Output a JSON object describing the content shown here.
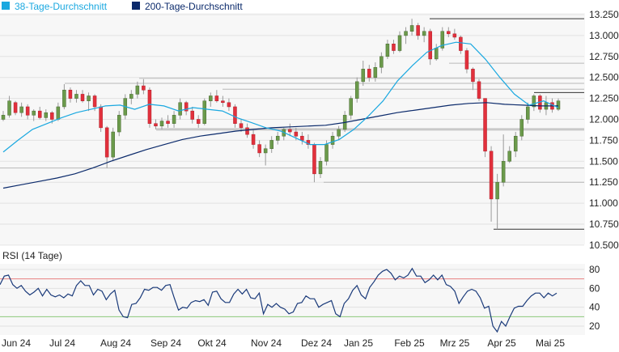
{
  "legend": [
    {
      "label": "38-Tage-Durchschnitt",
      "color": "#1aa8e0"
    },
    {
      "label": "200-Tage-Durchschnitt",
      "color": "#0b2a6b"
    }
  ],
  "chart_data": [
    {
      "type": "candlestick",
      "title": "",
      "yticks": [
        "13.250",
        "13.000",
        "12.750",
        "12.500",
        "12.250",
        "12.000",
        "11.750",
        "11.500",
        "11.250",
        "11.000",
        "10.750",
        "10.500"
      ],
      "ylim": [
        10.5,
        13.25
      ],
      "grid": true,
      "xticks": [
        "Jun 24",
        "Jul 24",
        "Aug 24",
        "Sep 24",
        "Okt 24",
        "Nov 24",
        "Dez 24",
        "Jan 25",
        "Feb 25",
        "Mrz 25",
        "Apr 25",
        "Mai 25"
      ],
      "colors": {
        "up": "#6b9a4b",
        "down": "#e2303c",
        "wick": "#9a9a9a"
      },
      "candles_ohlc": [
        [
          12.0,
          12.1,
          11.98,
          12.05
        ],
        [
          12.05,
          12.28,
          12.02,
          12.22
        ],
        [
          12.2,
          12.22,
          12.05,
          12.08
        ],
        [
          12.08,
          12.2,
          12.03,
          12.15
        ],
        [
          12.15,
          12.18,
          12.0,
          12.05
        ],
        [
          12.05,
          12.12,
          11.98,
          12.1
        ],
        [
          12.1,
          12.15,
          12.0,
          12.02
        ],
        [
          12.02,
          12.12,
          11.98,
          12.08
        ],
        [
          12.08,
          12.1,
          11.95,
          12.0
        ],
        [
          12.0,
          12.2,
          11.98,
          12.15
        ],
        [
          12.15,
          12.42,
          12.12,
          12.35
        ],
        [
          12.35,
          12.38,
          12.2,
          12.25
        ],
        [
          12.25,
          12.35,
          12.2,
          12.3
        ],
        [
          12.3,
          12.35,
          12.2,
          12.22
        ],
        [
          12.22,
          12.32,
          12.1,
          12.28
        ],
        [
          12.28,
          12.3,
          12.1,
          12.15
        ],
        [
          12.15,
          12.18,
          11.85,
          11.9
        ],
        [
          11.9,
          11.92,
          11.42,
          11.55
        ],
        [
          11.55,
          11.9,
          11.5,
          11.85
        ],
        [
          11.85,
          12.1,
          11.8,
          12.05
        ],
        [
          12.05,
          12.3,
          12.0,
          12.25
        ],
        [
          12.25,
          12.35,
          12.18,
          12.3
        ],
        [
          12.3,
          12.45,
          12.25,
          12.4
        ],
        [
          12.4,
          12.48,
          12.3,
          12.35
        ],
        [
          12.35,
          12.38,
          11.9,
          11.95
        ],
        [
          11.95,
          12.0,
          11.88,
          11.92
        ],
        [
          11.92,
          12.02,
          11.88,
          11.98
        ],
        [
          11.98,
          12.05,
          11.9,
          11.95
        ],
        [
          11.95,
          12.1,
          11.9,
          12.05
        ],
        [
          12.05,
          12.25,
          12.0,
          12.2
        ],
        [
          12.2,
          12.22,
          12.05,
          12.1
        ],
        [
          12.1,
          12.15,
          11.95,
          12.0
        ],
        [
          12.0,
          12.05,
          11.9,
          11.95
        ],
        [
          11.95,
          12.25,
          11.93,
          12.22
        ],
        [
          12.22,
          12.32,
          12.15,
          12.28
        ],
        [
          12.28,
          12.35,
          12.2,
          12.22
        ],
        [
          12.22,
          12.28,
          12.15,
          12.2
        ],
        [
          12.2,
          12.25,
          12.1,
          12.15
        ],
        [
          12.15,
          12.18,
          11.9,
          11.95
        ],
        [
          11.95,
          12.0,
          11.85,
          11.9
        ],
        [
          11.9,
          11.95,
          11.78,
          11.82
        ],
        [
          11.82,
          11.88,
          11.65,
          11.7
        ],
        [
          11.7,
          11.75,
          11.55,
          11.6
        ],
        [
          11.6,
          11.7,
          11.45,
          11.65
        ],
        [
          11.65,
          11.8,
          11.6,
          11.75
        ],
        [
          11.75,
          11.85,
          11.7,
          11.8
        ],
        [
          11.8,
          11.9,
          11.75,
          11.88
        ],
        [
          11.88,
          11.95,
          11.8,
          11.85
        ],
        [
          11.85,
          11.9,
          11.75,
          11.8
        ],
        [
          11.8,
          11.85,
          11.7,
          11.75
        ],
        [
          11.75,
          11.82,
          11.65,
          11.7
        ],
        [
          11.7,
          11.72,
          11.25,
          11.35
        ],
        [
          11.35,
          11.55,
          11.3,
          11.5
        ],
        [
          11.5,
          11.75,
          11.45,
          11.7
        ],
        [
          11.7,
          11.85,
          11.65,
          11.8
        ],
        [
          11.8,
          11.92,
          11.75,
          11.88
        ],
        [
          11.88,
          12.1,
          11.85,
          12.05
        ],
        [
          12.05,
          12.28,
          12.0,
          12.25
        ],
        [
          12.25,
          12.5,
          12.2,
          12.45
        ],
        [
          12.45,
          12.7,
          12.4,
          12.6
        ],
        [
          12.6,
          12.65,
          12.45,
          12.5
        ],
        [
          12.5,
          12.68,
          12.45,
          12.62
        ],
        [
          12.62,
          12.8,
          12.55,
          12.75
        ],
        [
          12.75,
          12.95,
          12.72,
          12.9
        ],
        [
          12.9,
          12.95,
          12.78,
          12.82
        ],
        [
          12.82,
          13.05,
          12.8,
          13.0
        ],
        [
          13.0,
          13.1,
          12.9,
          13.05
        ],
        [
          13.05,
          13.2,
          13.0,
          13.12
        ],
        [
          13.12,
          13.15,
          12.95,
          13.0
        ],
        [
          13.0,
          13.1,
          12.92,
          13.05
        ],
        [
          13.05,
          13.08,
          12.65,
          12.72
        ],
        [
          12.72,
          12.9,
          12.7,
          12.85
        ],
        [
          12.85,
          13.1,
          12.82,
          13.05
        ],
        [
          13.05,
          13.1,
          12.98,
          13.02
        ],
        [
          13.02,
          13.08,
          12.95,
          12.98
        ],
        [
          12.98,
          13.0,
          12.78,
          12.82
        ],
        [
          12.82,
          12.85,
          12.55,
          12.6
        ],
        [
          12.6,
          12.62,
          12.35,
          12.45
        ],
        [
          12.45,
          12.48,
          12.22,
          12.25
        ],
        [
          12.25,
          12.25,
          11.55,
          11.62
        ],
        [
          11.62,
          11.68,
          10.78,
          11.05
        ],
        [
          11.05,
          11.35,
          10.69,
          11.25
        ],
        [
          11.25,
          11.82,
          11.2,
          11.5
        ],
        [
          11.5,
          11.68,
          11.48,
          11.62
        ],
        [
          11.62,
          11.85,
          11.55,
          11.8
        ],
        [
          11.8,
          12.05,
          11.75,
          12.0
        ],
        [
          12.0,
          12.2,
          11.95,
          12.15
        ],
        [
          12.15,
          12.3,
          12.1,
          12.28
        ],
        [
          12.28,
          12.3,
          12.08,
          12.12
        ],
        [
          12.12,
          12.28,
          12.05,
          12.2
        ],
        [
          12.2,
          12.25,
          12.08,
          12.12
        ],
        [
          12.12,
          12.25,
          12.1,
          12.22
        ]
      ],
      "ma38": [
        11.61,
        11.75,
        11.88,
        11.95,
        12.02,
        12.08,
        12.12,
        12.16,
        12.17,
        12.12,
        12.18,
        12.16,
        12.1,
        12.14,
        12.12,
        12.1,
        12.02,
        11.96,
        11.9,
        11.86,
        11.78,
        11.7,
        11.7,
        11.76,
        11.88,
        12.04,
        12.22,
        12.46,
        12.64,
        12.8,
        12.88,
        12.92,
        12.9,
        12.72,
        12.5,
        12.3,
        12.17,
        12.22,
        12.14
      ],
      "ma200": [
        11.18,
        11.22,
        11.26,
        11.3,
        11.35,
        11.42,
        11.5,
        11.57,
        11.64,
        11.7,
        11.76,
        11.8,
        11.83,
        11.86,
        11.88,
        11.9,
        11.91,
        11.92,
        11.93,
        11.96,
        12.0,
        12.04,
        12.08,
        12.11,
        12.14,
        12.17,
        12.19,
        12.2,
        12.18,
        12.17,
        12.16,
        12.16
      ],
      "levels": [
        {
          "value": 13.2,
          "color": "#333333"
        },
        {
          "value": 12.67,
          "color": "#b8b8b8"
        },
        {
          "value": 12.49,
          "color": "#b8b8b8"
        },
        {
          "value": 12.43,
          "color": "#b8b8b8"
        },
        {
          "value": 12.36,
          "color": "#b8b8b8"
        },
        {
          "value": 12.32,
          "color": "#333333"
        },
        {
          "value": 11.88,
          "color": "#c8c8c8"
        },
        {
          "value": 11.42,
          "color": "#b8b8b8"
        },
        {
          "value": 11.25,
          "color": "#b8b8b8"
        },
        {
          "value": 10.69,
          "color": "#333333"
        }
      ]
    },
    {
      "type": "line",
      "title": "RSI (14 Tage)",
      "ylim": [
        10,
        85
      ],
      "yticks": [
        "80",
        "60",
        "40",
        "20"
      ],
      "overbought": 70,
      "oversold": 30,
      "colors": {
        "line": "#1a3a7a",
        "overbought": "#e88080",
        "oversold": "#8cc87a"
      },
      "values": [
        64,
        73,
        74,
        64,
        60,
        63,
        57,
        53,
        56,
        60,
        52,
        59,
        53,
        51,
        53,
        50,
        54,
        52,
        63,
        68,
        63,
        63,
        53,
        59,
        57,
        48,
        54,
        58,
        37,
        30,
        29,
        43,
        44,
        50,
        59,
        58,
        61,
        61,
        58,
        63,
        64,
        50,
        37,
        40,
        39,
        45,
        47,
        46,
        48,
        42,
        56,
        57,
        49,
        45,
        45,
        54,
        59,
        54,
        59,
        50,
        49,
        55,
        33,
        43,
        40,
        44,
        40,
        38,
        33,
        35,
        44,
        45,
        52,
        49,
        49,
        40,
        43,
        45,
        47,
        33,
        30,
        44,
        49,
        58,
        63,
        53,
        49,
        61,
        67,
        74,
        78,
        80,
        76,
        69,
        73,
        71,
        74,
        81,
        73,
        73,
        66,
        69,
        74,
        69,
        74,
        64,
        62,
        57,
        44,
        51,
        57,
        59,
        57,
        50,
        39,
        41,
        20,
        14,
        25,
        20,
        30,
        39,
        41,
        41,
        47,
        52,
        55,
        55,
        50,
        55,
        52,
        55
      ]
    }
  ]
}
